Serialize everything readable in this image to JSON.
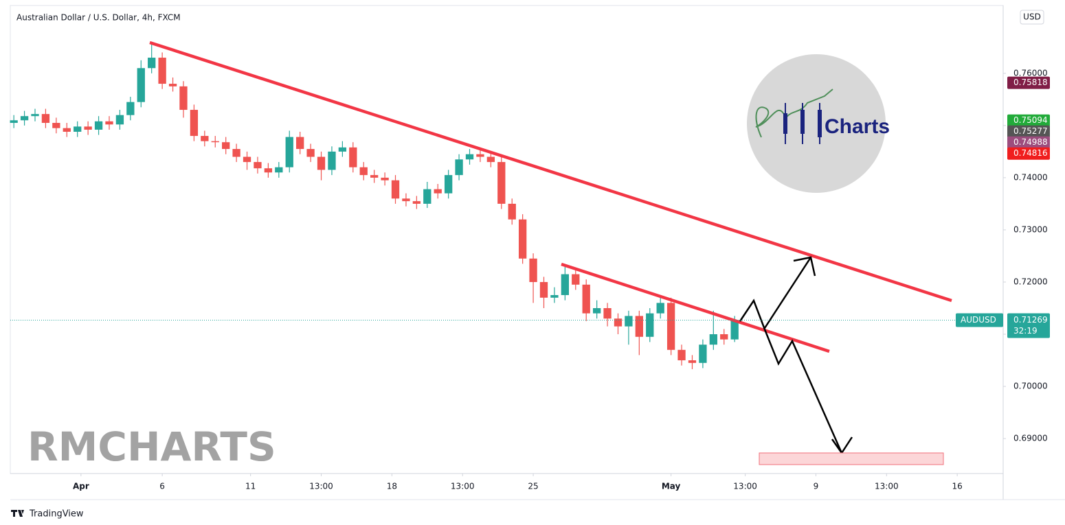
{
  "chart_data": {
    "type": "candlestick",
    "title": "Australian Dollar / U.S. Dollar, 4h, FXCM",
    "watermark": "RMCHARTS",
    "logo_text": "Charts",
    "footer": "TradingView",
    "currency": "USD",
    "up_color": "#26a69a",
    "down_color": "#ef5350",
    "grid": false,
    "xlim": [
      -1,
      280
    ],
    "xticks": [
      {
        "value": 19,
        "label": "Apr"
      },
      {
        "value": 42,
        "label": "6"
      },
      {
        "value": 67,
        "label": "11"
      },
      {
        "value": 87,
        "label": "13:00"
      },
      {
        "value": 107,
        "label": "18"
      },
      {
        "value": 127,
        "label": "13:00"
      },
      {
        "value": 147,
        "label": "25"
      },
      {
        "value": 186,
        "label": "May"
      },
      {
        "value": 207,
        "label": "13:00"
      },
      {
        "value": 227,
        "label": "9"
      },
      {
        "value": 247,
        "label": "13:00"
      },
      {
        "value": 267,
        "label": "16"
      }
    ],
    "ylim": [
      0.6833,
      0.773
    ],
    "yticks": [
      {
        "value": 0.69,
        "label": "0.69000"
      },
      {
        "value": 0.7,
        "label": "0.70000"
      },
      {
        "value": 0.71,
        "label": "0.71000"
      },
      {
        "value": 0.72,
        "label": "0.72000"
      },
      {
        "value": 0.73,
        "label": "0.73000"
      },
      {
        "value": 0.74,
        "label": "0.74000"
      },
      {
        "value": 0.75,
        "label": "0.75000"
      },
      {
        "value": 0.76,
        "label": "0.76000"
      }
    ],
    "x": [
      0,
      3,
      6,
      9,
      12,
      15,
      18,
      21,
      24,
      27,
      30,
      33,
      36,
      39,
      42,
      45,
      48,
      51,
      54,
      57,
      60,
      63,
      66,
      69,
      72,
      75,
      78,
      81,
      84,
      87,
      90,
      93,
      96,
      99,
      102,
      105,
      108,
      111,
      114,
      117,
      120,
      123,
      126,
      129,
      132,
      135,
      138,
      141,
      144,
      147,
      150,
      153,
      156,
      159,
      162,
      165,
      168,
      171,
      174,
      177,
      180,
      183,
      186,
      189,
      192,
      195,
      198,
      201,
      204
    ],
    "open": [
      0.7505,
      0.751,
      0.7518,
      0.7522,
      0.7505,
      0.7495,
      0.7488,
      0.7498,
      0.7492,
      0.7508,
      0.7502,
      0.752,
      0.7545,
      0.761,
      0.763,
      0.758,
      0.7575,
      0.753,
      0.748,
      0.747,
      0.7468,
      0.7455,
      0.744,
      0.743,
      0.7418,
      0.741,
      0.742,
      0.7478,
      0.7455,
      0.744,
      0.7415,
      0.745,
      0.7458,
      0.742,
      0.7405,
      0.74,
      0.7395,
      0.736,
      0.7355,
      0.735,
      0.7378,
      0.737,
      0.7405,
      0.7435,
      0.7445,
      0.744,
      0.743,
      0.735,
      0.732,
      0.7245,
      0.72,
      0.717,
      0.7175,
      0.7215,
      0.7195,
      0.714,
      0.715,
      0.713,
      0.7115,
      0.7135,
      0.7095,
      0.714,
      0.716,
      0.707,
      0.705,
      0.7045,
      0.708,
      0.71,
      0.709
    ],
    "high": [
      0.752,
      0.7528,
      0.7532,
      0.7532,
      0.7515,
      0.7505,
      0.7508,
      0.7508,
      0.7518,
      0.7518,
      0.753,
      0.7555,
      0.7625,
      0.7659,
      0.764,
      0.7592,
      0.7585,
      0.754,
      0.749,
      0.748,
      0.7478,
      0.7465,
      0.745,
      0.744,
      0.7428,
      0.743,
      0.749,
      0.7488,
      0.7465,
      0.745,
      0.746,
      0.747,
      0.7468,
      0.743,
      0.7415,
      0.741,
      0.7405,
      0.737,
      0.7365,
      0.7392,
      0.7388,
      0.7415,
      0.7445,
      0.7455,
      0.7458,
      0.745,
      0.744,
      0.736,
      0.733,
      0.7255,
      0.721,
      0.719,
      0.723,
      0.7225,
      0.7205,
      0.7165,
      0.716,
      0.714,
      0.7145,
      0.7145,
      0.715,
      0.7172,
      0.717,
      0.708,
      0.706,
      0.709,
      0.7145,
      0.711,
      0.7135
    ],
    "low": [
      0.7495,
      0.75,
      0.7508,
      0.7495,
      0.7485,
      0.7478,
      0.7478,
      0.7482,
      0.7482,
      0.7492,
      0.7492,
      0.751,
      0.7535,
      0.76,
      0.757,
      0.7565,
      0.7515,
      0.747,
      0.746,
      0.7458,
      0.7445,
      0.743,
      0.7415,
      0.7408,
      0.74,
      0.74,
      0.741,
      0.7445,
      0.743,
      0.7395,
      0.7405,
      0.744,
      0.741,
      0.7395,
      0.739,
      0.7385,
      0.735,
      0.7345,
      0.734,
      0.7342,
      0.736,
      0.736,
      0.7395,
      0.7425,
      0.743,
      0.742,
      0.734,
      0.731,
      0.7235,
      0.716,
      0.715,
      0.716,
      0.7165,
      0.7185,
      0.7125,
      0.713,
      0.7115,
      0.71,
      0.708,
      0.706,
      0.7085,
      0.713,
      0.706,
      0.704,
      0.7033,
      0.7035,
      0.707,
      0.708,
      0.7085
    ],
    "close": [
      0.751,
      0.7518,
      0.7522,
      0.7505,
      0.7495,
      0.7488,
      0.7498,
      0.7492,
      0.7508,
      0.7502,
      0.752,
      0.7545,
      0.761,
      0.763,
      0.758,
      0.7575,
      0.753,
      0.748,
      0.747,
      0.7468,
      0.7455,
      0.744,
      0.743,
      0.7418,
      0.741,
      0.742,
      0.7478,
      0.7455,
      0.744,
      0.7415,
      0.745,
      0.7458,
      0.742,
      0.7405,
      0.74,
      0.7395,
      0.736,
      0.7355,
      0.735,
      0.7378,
      0.737,
      0.7405,
      0.7435,
      0.7445,
      0.744,
      0.743,
      0.735,
      0.732,
      0.7245,
      0.72,
      0.717,
      0.7175,
      0.7215,
      0.7195,
      0.714,
      0.715,
      0.713,
      0.7115,
      0.7135,
      0.7095,
      0.714,
      0.716,
      0.707,
      0.705,
      0.7045,
      0.708,
      0.71,
      0.709,
      0.71269
    ],
    "price_tags": [
      {
        "value": 0.75818,
        "color": "#801d46"
      },
      {
        "value": 0.75094,
        "color": "#22ab3a"
      },
      {
        "value": 0.75277,
        "color": "#555555"
      },
      {
        "value": 0.74988,
        "color": "#9c4d7e"
      },
      {
        "value": 0.74816,
        "color": "#f01e1e"
      }
    ],
    "last_price": {
      "symbol": "AUDUSD",
      "value": 0.71269,
      "countdown": "32:19",
      "color": "#26a69a"
    }
  }
}
